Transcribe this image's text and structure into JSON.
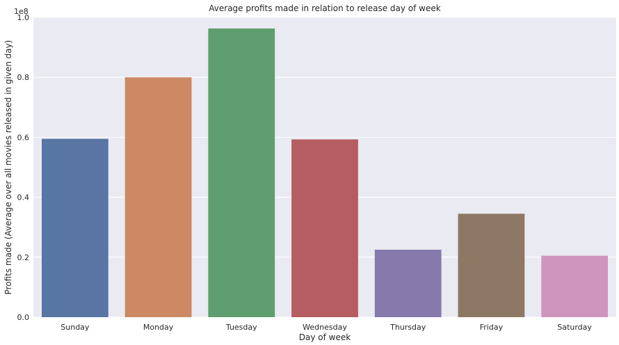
{
  "chart_data": {
    "type": "bar",
    "title": "Average profits made in relation to release day of week",
    "xlabel": "Day of week",
    "ylabel": "Profits made (Average over all movies released in given day)",
    "offset_label": "1e8",
    "categories": [
      "Sunday",
      "Monday",
      "Tuesday",
      "Wednesday",
      "Thursday",
      "Friday",
      "Saturday"
    ],
    "values": [
      59500000,
      80000000,
      96300000,
      59300000,
      22500000,
      34500000,
      20500000
    ],
    "ylim": [
      0,
      100000000
    ],
    "yticks": [
      0,
      20000000,
      40000000,
      60000000,
      80000000,
      100000000
    ],
    "ytick_labels": [
      "0.0",
      "0.2",
      "0.4",
      "0.6",
      "0.8",
      "1.0"
    ],
    "colors": [
      "#5875a4",
      "#cc8963",
      "#5f9e6e",
      "#b55d60",
      "#857aab",
      "#8d7866",
      "#d095bf"
    ],
    "background": "#eaeaf2",
    "grid": true
  }
}
